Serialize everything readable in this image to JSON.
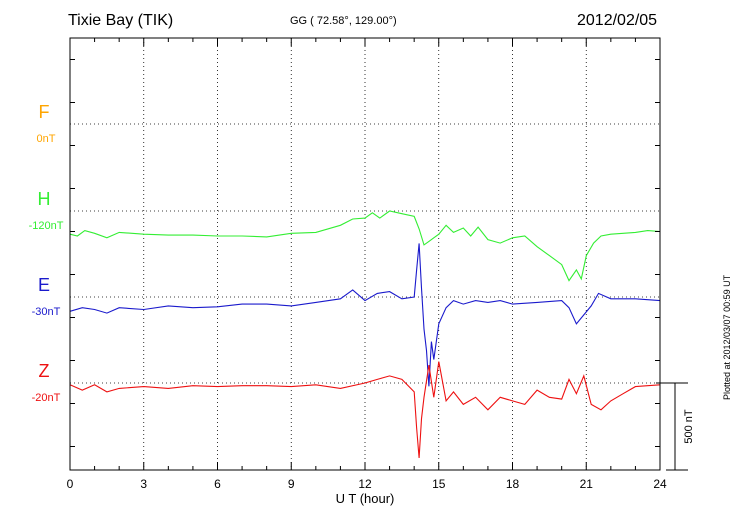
{
  "header": {
    "station": "Tixie Bay (TIK)",
    "coordinates": "GG ( 72.58°, 129.00°)",
    "date": "2012/02/05"
  },
  "footer": {
    "plotted": "Plotted at 2012/03/07 00:59 UT"
  },
  "chart_data": {
    "type": "line",
    "title": "Tixie Bay (TIK)",
    "xlabel": "U T (hour)",
    "ylabel": "",
    "xlim": [
      0,
      24
    ],
    "xticks": [
      "0",
      "3",
      "6",
      "9",
      "12",
      "15",
      "18",
      "21",
      "24"
    ],
    "grid": true,
    "scale_bar": {
      "label": "500 nT",
      "value_nT": 500
    },
    "colors": {
      "F": "#ffa500",
      "H": "#33ee33",
      "E": "#1a1acc",
      "Z": "#ee1111"
    },
    "series": [
      {
        "name": "F",
        "baseline": "0nT",
        "x": [],
        "values": []
      },
      {
        "name": "H",
        "baseline": "-120nT",
        "x": [
          0,
          0.3,
          0.6,
          1,
          1.5,
          2,
          3,
          4,
          5,
          6,
          7,
          8,
          9,
          10,
          11,
          11.5,
          12,
          12.3,
          12.6,
          13,
          13.5,
          14,
          14.2,
          14.4,
          14.6,
          14.8,
          15,
          15.3,
          15.6,
          16,
          16.3,
          16.6,
          17,
          17.5,
          18,
          18.5,
          19,
          19.5,
          20,
          20.3,
          20.6,
          20.8,
          21,
          21.3,
          21.6,
          22,
          22.5,
          23,
          23.5,
          24
        ],
        "values": [
          -130,
          -140,
          -110,
          -125,
          -150,
          -120,
          -130,
          -135,
          -135,
          -140,
          -140,
          -145,
          -125,
          -120,
          -80,
          -45,
          -40,
          -10,
          -40,
          0,
          -15,
          -30,
          -100,
          -190,
          -170,
          -150,
          -130,
          -80,
          -120,
          -95,
          -140,
          -90,
          -160,
          -180,
          -150,
          -140,
          -200,
          -250,
          -300,
          -390,
          -330,
          -380,
          -250,
          -180,
          -140,
          -130,
          -125,
          -120,
          -110,
          -115
        ]
      },
      {
        "name": "E",
        "baseline": "-30nT",
        "x": [
          0,
          0.5,
          1,
          1.5,
          2,
          3,
          4,
          5,
          6,
          7,
          8,
          9,
          10,
          11,
          11.5,
          12,
          12.5,
          13,
          13.5,
          14,
          14.1,
          14.2,
          14.3,
          14.4,
          14.5,
          14.6,
          14.7,
          14.8,
          15,
          15.3,
          15.6,
          16,
          16.5,
          17,
          17.5,
          18,
          19,
          20,
          20.3,
          20.6,
          20.9,
          21.2,
          21.5,
          22,
          23,
          24
        ],
        "values": [
          -80,
          -60,
          -70,
          -90,
          -60,
          -70,
          -50,
          -60,
          -55,
          -40,
          -40,
          -50,
          -30,
          -10,
          40,
          -20,
          20,
          30,
          -10,
          0,
          150,
          300,
          50,
          -180,
          -300,
          -500,
          -250,
          -350,
          -150,
          -60,
          -20,
          -40,
          -20,
          -30,
          -20,
          -40,
          -30,
          -20,
          -60,
          -150,
          -100,
          -50,
          20,
          -10,
          -10,
          -20
        ]
      },
      {
        "name": "Z",
        "baseline": "-20nT",
        "x": [
          0,
          0.5,
          1,
          1.5,
          2,
          3,
          4,
          5,
          6,
          7,
          8,
          9,
          10,
          11,
          12,
          12.5,
          13,
          13.5,
          14,
          14.1,
          14.2,
          14.3,
          14.4,
          14.6,
          14.8,
          15,
          15.3,
          15.6,
          16,
          16.5,
          17,
          17.5,
          18,
          18.5,
          19,
          19.5,
          20,
          20.3,
          20.6,
          20.9,
          21.2,
          21.6,
          22,
          22.5,
          23,
          24
        ],
        "values": [
          -10,
          -40,
          -10,
          -50,
          -30,
          -20,
          -30,
          -15,
          -20,
          -15,
          -15,
          -20,
          -10,
          -30,
          0,
          20,
          40,
          20,
          -50,
          -250,
          -420,
          -200,
          -80,
          100,
          -80,
          120,
          -100,
          -50,
          -120,
          -80,
          -150,
          -80,
          -100,
          -120,
          -40,
          -80,
          -90,
          20,
          -60,
          40,
          -120,
          -150,
          -100,
          -60,
          -20,
          -10
        ]
      }
    ]
  }
}
